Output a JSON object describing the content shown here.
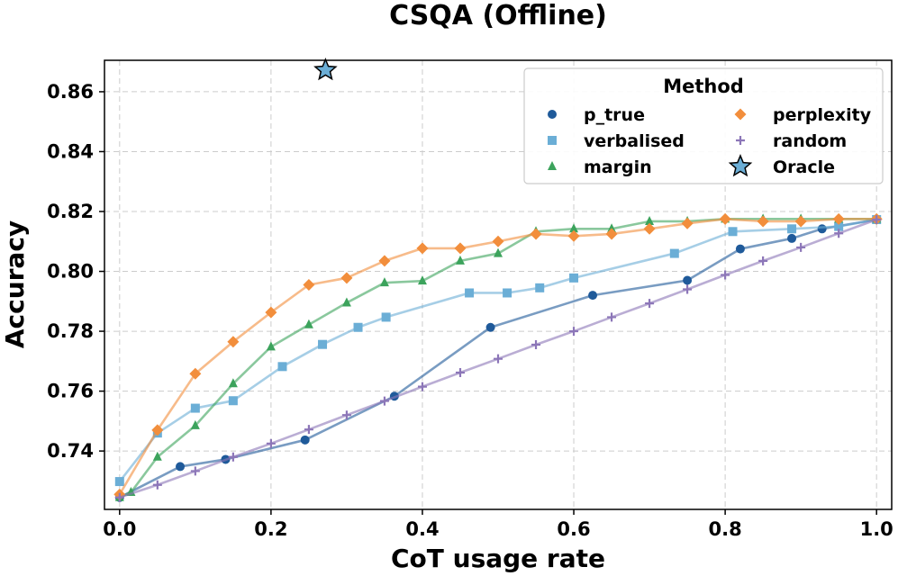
{
  "chart_data": {
    "type": "line",
    "title": "CSQA (Offline)",
    "xlabel": "CoT usage rate",
    "ylabel": "Accuracy",
    "xlim": [
      -0.02,
      1.02
    ],
    "ylim": [
      0.7205,
      0.8705
    ],
    "xticks": [
      "0.0",
      "0.2",
      "0.4",
      "0.6",
      "0.8",
      "1.0"
    ],
    "xtick_values": [
      0.0,
      0.2,
      0.4,
      0.6,
      0.8,
      1.0
    ],
    "yticks": [
      "0.74",
      "0.76",
      "0.78",
      "0.80",
      "0.82",
      "0.84",
      "0.86"
    ],
    "ytick_values": [
      0.74,
      0.76,
      0.78,
      0.8,
      0.82,
      0.84,
      0.86
    ],
    "grid": true,
    "legend": {
      "title": "Method",
      "placement": "top-right",
      "columns": 2
    },
    "series": [
      {
        "name": "p_true",
        "marker": "circle",
        "color": "#1f5a9a",
        "x": [
          0.0,
          0.08,
          0.14,
          0.245,
          0.363,
          0.49,
          0.625,
          0.75,
          0.82,
          0.888,
          0.928,
          1.0
        ],
        "y": [
          0.7245,
          0.7348,
          0.7372,
          0.7437,
          0.7583,
          0.7813,
          0.792,
          0.797,
          0.8075,
          0.811,
          0.8142,
          0.8173
        ]
      },
      {
        "name": "verbalised",
        "marker": "square",
        "color": "#6baed6",
        "x": [
          0.0,
          0.05,
          0.1,
          0.15,
          0.215,
          0.268,
          0.315,
          0.352,
          0.462,
          0.512,
          0.555,
          0.6,
          0.733,
          0.81,
          0.888,
          0.95,
          1.0
        ],
        "y": [
          0.7298,
          0.746,
          0.7543,
          0.7568,
          0.7682,
          0.7756,
          0.7813,
          0.7847,
          0.7928,
          0.7928,
          0.7945,
          0.7978,
          0.806,
          0.8133,
          0.8142,
          0.815,
          0.8173
        ]
      },
      {
        "name": "margin",
        "marker": "triangle",
        "color": "#3ca35c",
        "x": [
          0.0,
          0.015,
          0.05,
          0.1,
          0.15,
          0.2,
          0.25,
          0.3,
          0.35,
          0.4,
          0.45,
          0.5,
          0.55,
          0.6,
          0.65,
          0.7,
          0.75,
          0.8,
          0.85,
          0.9,
          0.95,
          1.0
        ],
        "y": [
          0.7245,
          0.7262,
          0.738,
          0.7485,
          0.7625,
          0.7748,
          0.7822,
          0.7895,
          0.7962,
          0.7968,
          0.8035,
          0.806,
          0.8133,
          0.8142,
          0.8142,
          0.8167,
          0.8167,
          0.8175,
          0.8175,
          0.8175,
          0.8175,
          0.8175
        ]
      },
      {
        "name": "perplexity",
        "marker": "diamond",
        "color": "#f28e3c",
        "x": [
          0.0,
          0.05,
          0.1,
          0.15,
          0.2,
          0.25,
          0.3,
          0.35,
          0.4,
          0.45,
          0.5,
          0.55,
          0.6,
          0.65,
          0.7,
          0.75,
          0.8,
          0.85,
          0.9,
          0.95,
          1.0
        ],
        "y": [
          0.7255,
          0.747,
          0.7658,
          0.7765,
          0.7863,
          0.7955,
          0.7978,
          0.8035,
          0.8077,
          0.8077,
          0.81,
          0.8125,
          0.8118,
          0.8125,
          0.8142,
          0.816,
          0.8175,
          0.8167,
          0.8167,
          0.8175,
          0.8175
        ]
      },
      {
        "name": "random",
        "marker": "plus",
        "color": "#8c76b8",
        "x": [
          0.0,
          0.05,
          0.1,
          0.15,
          0.2,
          0.25,
          0.3,
          0.35,
          0.4,
          0.45,
          0.5,
          0.55,
          0.6,
          0.65,
          0.7,
          0.75,
          0.8,
          0.85,
          0.9,
          0.95,
          1.0
        ],
        "y": [
          0.7245,
          0.7287,
          0.7333,
          0.738,
          0.7425,
          0.7472,
          0.752,
          0.7567,
          0.7615,
          0.7662,
          0.7708,
          0.7755,
          0.78,
          0.7847,
          0.7893,
          0.794,
          0.7988,
          0.8035,
          0.808,
          0.8127,
          0.8173
        ]
      }
    ],
    "oracle": {
      "name": "Oracle",
      "marker": "star",
      "color": "#6baed6",
      "x": 0.272,
      "y": 0.8672
    }
  }
}
